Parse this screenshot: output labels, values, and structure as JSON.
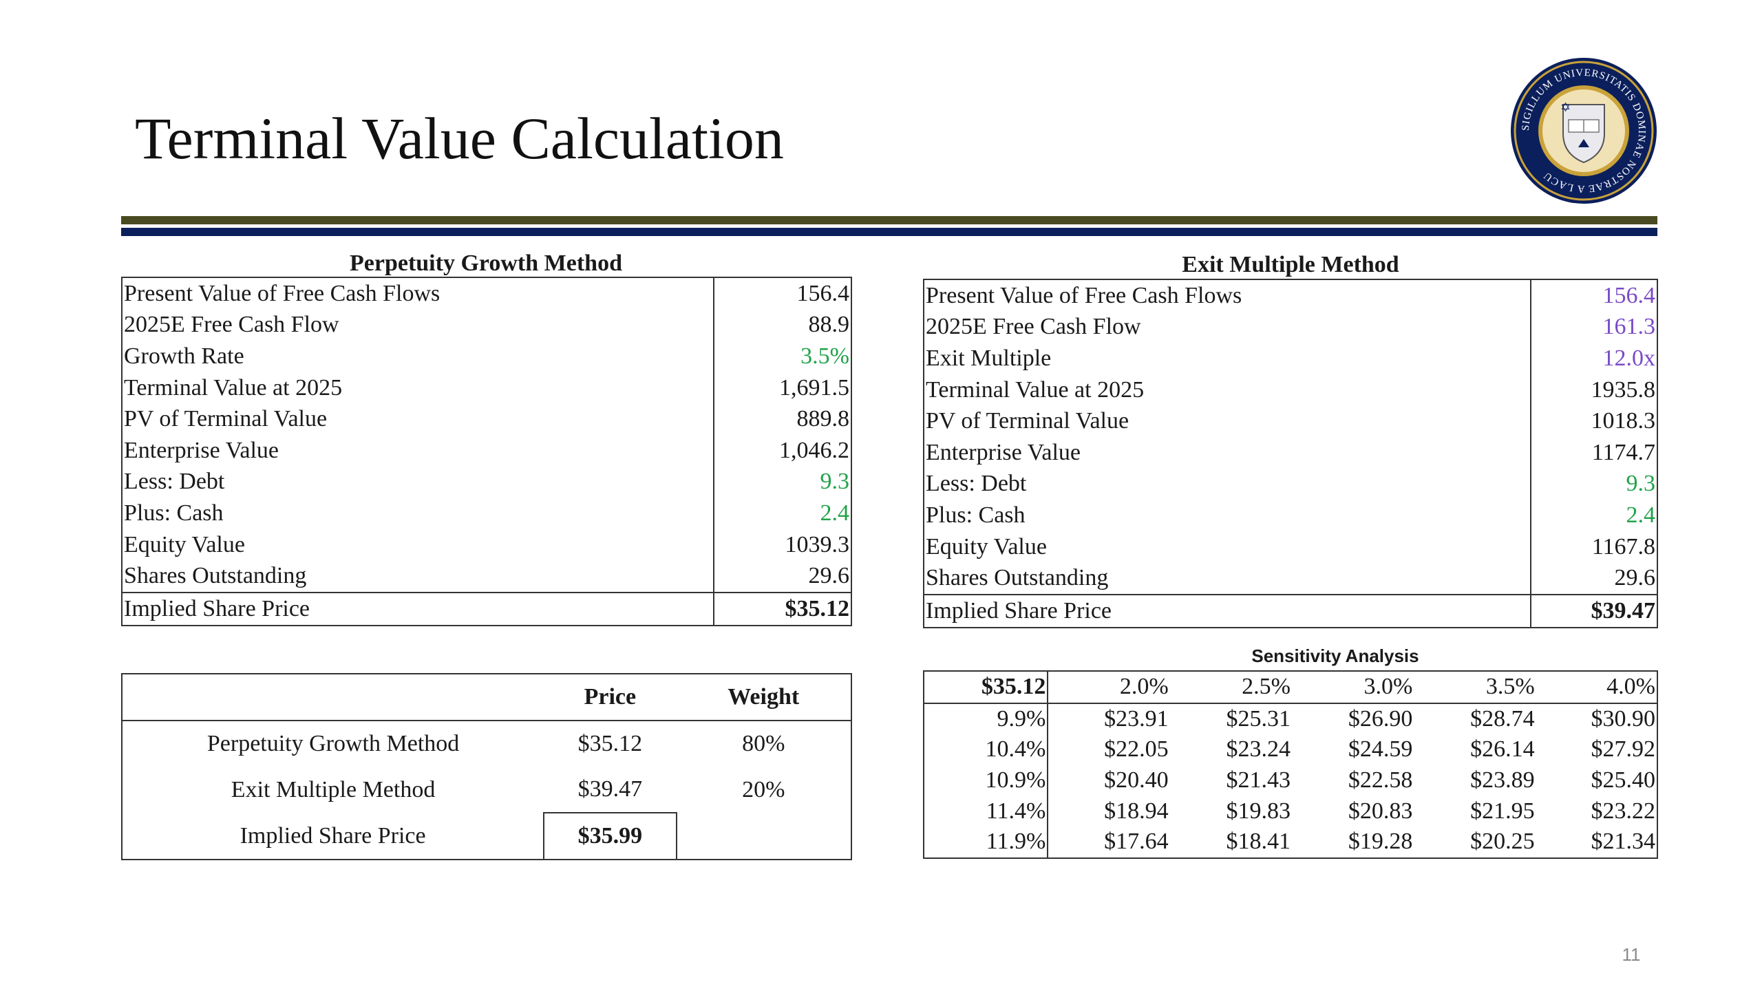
{
  "slide": {
    "title": "Terminal Value Calculation",
    "page_number": "11"
  },
  "seal": {
    "text": "SIGILLUM UNIVERSITATIS DOMINAE NOSTRAE A LACU",
    "colors": {
      "navy": "#0b1f5c",
      "gold": "#c9a23a"
    }
  },
  "perpetuity": {
    "title": "Perpetuity Growth Method",
    "rows": [
      {
        "label": "Present Value of Free Cash Flows",
        "value": "156.4"
      },
      {
        "label": "2025E Free Cash Flow",
        "value": "88.9"
      },
      {
        "label": "Growth Rate",
        "value": "3.5%"
      },
      {
        "label": "Terminal Value at 2025",
        "value": "1,691.5"
      },
      {
        "label": "PV of Terminal Value",
        "value": "889.8"
      },
      {
        "label": "Enterprise Value",
        "value": "1,046.2"
      },
      {
        "label": "Less: Debt",
        "value": "9.3"
      },
      {
        "label": "Plus: Cash",
        "value": "2.4"
      },
      {
        "label": "Equity Value",
        "value": "1039.3"
      },
      {
        "label": "Shares Outstanding",
        "value": "29.6"
      },
      {
        "label": "Implied Share Price",
        "value": "$35.12"
      }
    ]
  },
  "exit_multiple": {
    "title": "Exit Multiple Method",
    "rows": [
      {
        "label": "Present Value of Free Cash Flows",
        "value": "156.4"
      },
      {
        "label": "2025E Free Cash Flow",
        "value": "161.3"
      },
      {
        "label": "Exit Multiple",
        "value": "12.0x"
      },
      {
        "label": "Terminal Value at 2025",
        "value": "1935.8"
      },
      {
        "label": "PV of Terminal Value",
        "value": "1018.3"
      },
      {
        "label": "Enterprise Value",
        "value": "1174.7"
      },
      {
        "label": "Less: Debt",
        "value": "9.3"
      },
      {
        "label": "Plus: Cash",
        "value": "2.4"
      },
      {
        "label": "Equity Value",
        "value": "1167.8"
      },
      {
        "label": "Shares Outstanding",
        "value": "29.6"
      },
      {
        "label": "Implied Share Price",
        "value": "$39.47"
      }
    ]
  },
  "blend": {
    "headers": {
      "price": "Price",
      "weight": "Weight"
    },
    "rows": [
      {
        "method": "Perpetuity Growth Method",
        "price": "$35.12",
        "weight": "80%"
      },
      {
        "method": "Exit Multiple Method",
        "price": "$39.47",
        "weight": "20%"
      }
    ],
    "result": {
      "label": "Implied Share Price",
      "price": "$35.99"
    }
  },
  "sensitivity": {
    "title": "Sensitivity Analysis",
    "corner": "$35.12",
    "cols": [
      "2.0%",
      "2.5%",
      "3.0%",
      "3.5%",
      "4.0%"
    ],
    "rows": [
      {
        "rate": "9.9%",
        "values": [
          "$23.91",
          "$25.31",
          "$26.90",
          "$28.74",
          "$30.90"
        ]
      },
      {
        "rate": "10.4%",
        "values": [
          "$22.05",
          "$23.24",
          "$24.59",
          "$26.14",
          "$27.92"
        ]
      },
      {
        "rate": "10.9%",
        "values": [
          "$20.40",
          "$21.43",
          "$22.58",
          "$23.89",
          "$25.40"
        ]
      },
      {
        "rate": "11.4%",
        "values": [
          "$18.94",
          "$19.83",
          "$20.83",
          "$21.95",
          "$23.22"
        ]
      },
      {
        "rate": "11.9%",
        "values": [
          "$17.64",
          "$18.41",
          "$19.28",
          "$20.25",
          "$21.34"
        ]
      }
    ]
  },
  "colors": {
    "input_green": "#22a24a",
    "input_purple": "#7a4ac8",
    "rule_olive": "#4a4a22",
    "rule_navy": "#0b1f5c"
  }
}
